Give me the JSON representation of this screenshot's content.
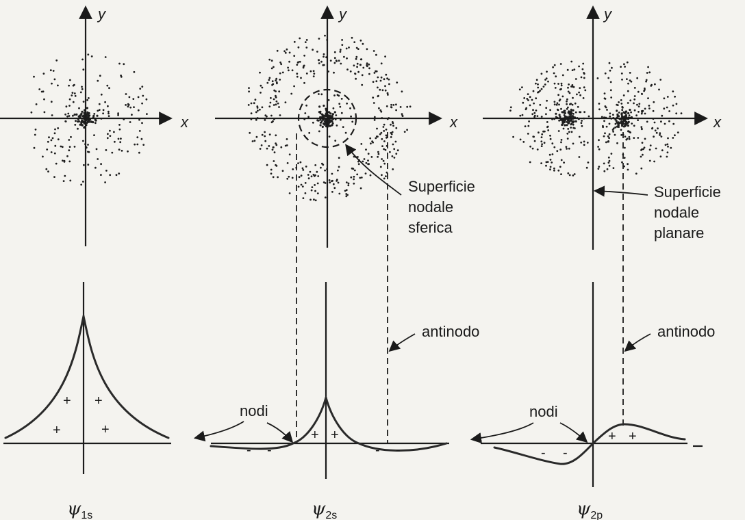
{
  "axes": {
    "x_label": "x",
    "y_label": "y"
  },
  "panels": [
    {
      "id": "1s",
      "psi_symbol": "ψ",
      "psi_sub": "1s"
    },
    {
      "id": "2s",
      "psi_symbol": "ψ",
      "psi_sub": "2s",
      "node_surface": [
        "Superficie",
        "nodale",
        "sferica"
      ],
      "antinode": "antinodo",
      "nodes": "nodi"
    },
    {
      "id": "2p",
      "psi_symbol": "ψ",
      "psi_sub": "2p",
      "node_surface": [
        "Superficie",
        "nodale",
        "planare"
      ],
      "antinode": "antinodo",
      "nodes": "nodi"
    }
  ],
  "signs": {
    "plus": "+",
    "minus": "-"
  }
}
